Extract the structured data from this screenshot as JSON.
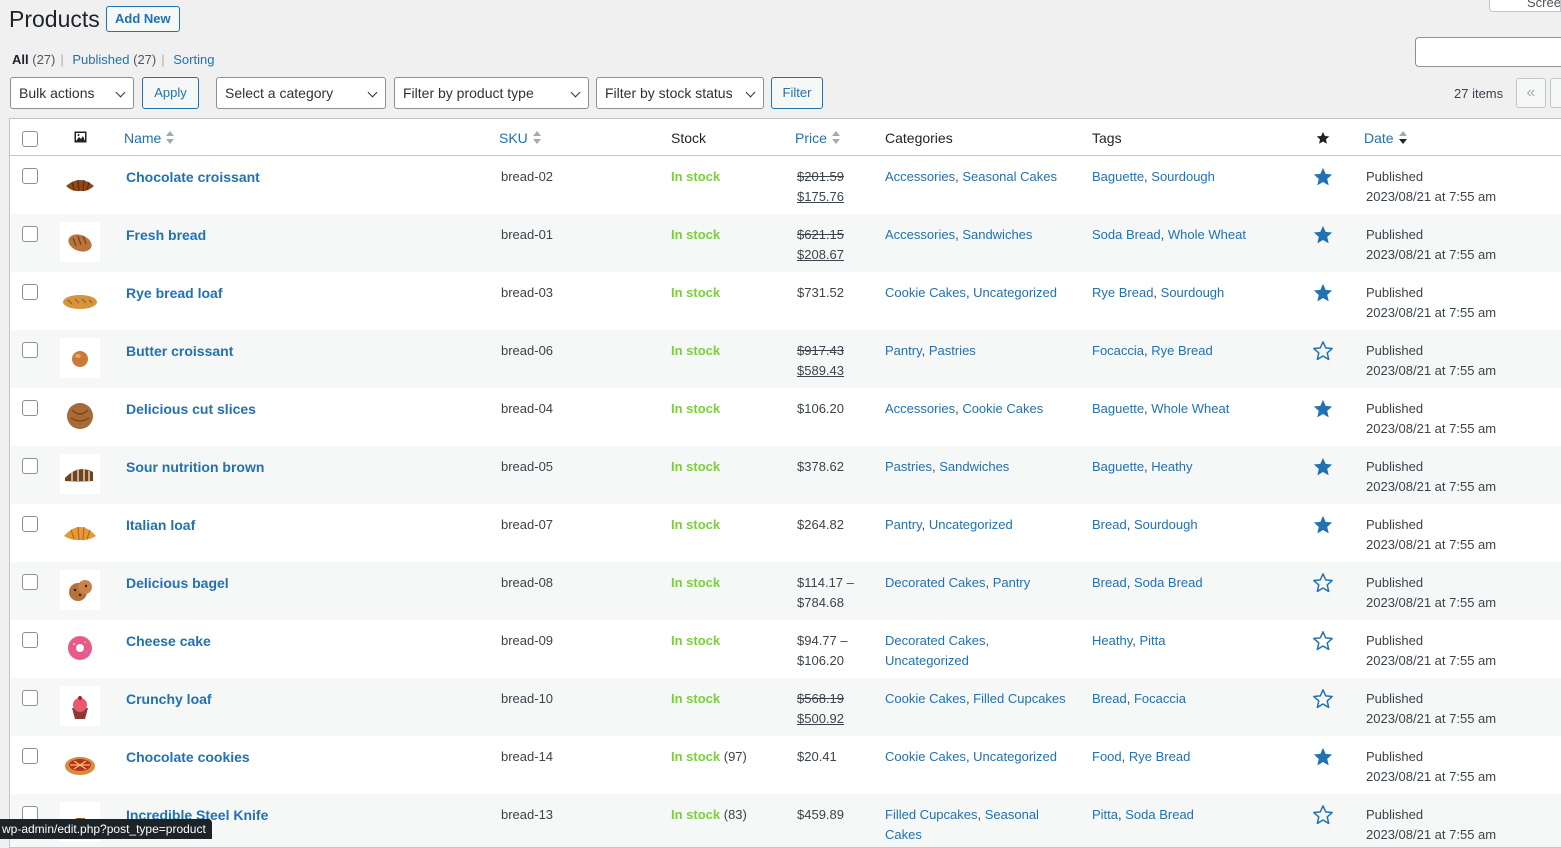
{
  "header": {
    "title": "Products",
    "add_new": "Add New",
    "screen_options": "Screen Options"
  },
  "views": {
    "all_label": "All",
    "all_count": "(27)",
    "published_label": "Published",
    "published_count": "(27)",
    "sorting_label": "Sorting"
  },
  "filters": {
    "bulk_actions": "Bulk actions",
    "apply": "Apply",
    "category": "Select a category",
    "product_type": "Filter by product type",
    "stock_status": "Filter by stock status",
    "filter": "Filter",
    "items_count": "27 items",
    "first_page": "«"
  },
  "columns": {
    "name": "Name",
    "sku": "SKU",
    "stock": "Stock",
    "price": "Price",
    "categories": "Categories",
    "tags": "Tags",
    "date": "Date"
  },
  "products": [
    {
      "name": "Chocolate croissant",
      "sku": "bread-02",
      "stock": "In stock",
      "qty": "",
      "price_old": "$201.59",
      "price_new": "$175.76",
      "price_plain": "",
      "cats": [
        "Accessories",
        "Seasonal Cakes"
      ],
      "tags": [
        "Baguette",
        "Sourdough"
      ],
      "featured": true,
      "status": "Published",
      "date": "2023/08/21 at 7:55 am",
      "thumb": "croissant"
    },
    {
      "name": "Fresh bread",
      "sku": "bread-01",
      "stock": "In stock",
      "qty": "",
      "price_old": "$621.15",
      "price_new": "$208.67",
      "price_plain": "",
      "cats": [
        "Accessories",
        "Sandwiches"
      ],
      "tags": [
        "Soda Bread",
        "Whole Wheat"
      ],
      "featured": true,
      "status": "Published",
      "date": "2023/08/21 at 7:55 am",
      "thumb": "loaf"
    },
    {
      "name": "Rye bread loaf",
      "sku": "bread-03",
      "stock": "In stock",
      "qty": "",
      "price_old": "",
      "price_new": "",
      "price_plain": "$731.52",
      "cats": [
        "Cookie Cakes",
        "Uncategorized"
      ],
      "tags": [
        "Rye Bread",
        "Sourdough"
      ],
      "featured": true,
      "status": "Published",
      "date": "2023/08/21 at 7:55 am",
      "thumb": "baguette"
    },
    {
      "name": "Butter croissant",
      "sku": "bread-06",
      "stock": "In stock",
      "qty": "",
      "price_old": "$917.43",
      "price_new": "$589.43",
      "price_plain": "",
      "cats": [
        "Pantry",
        "Pastries"
      ],
      "tags": [
        "Focaccia",
        "Rye Bread"
      ],
      "featured": false,
      "status": "Published",
      "date": "2023/08/21 at 7:55 am",
      "thumb": "bun"
    },
    {
      "name": "Delicious cut slices",
      "sku": "bread-04",
      "stock": "In stock",
      "qty": "",
      "price_old": "",
      "price_new": "",
      "price_plain": "$106.20",
      "cats": [
        "Accessories",
        "Cookie Cakes"
      ],
      "tags": [
        "Baguette",
        "Whole Wheat"
      ],
      "featured": true,
      "status": "Published",
      "date": "2023/08/21 at 7:55 am",
      "thumb": "round"
    },
    {
      "name": "Sour nutrition brown",
      "sku": "bread-05",
      "stock": "In stock",
      "qty": "",
      "price_old": "",
      "price_new": "",
      "price_plain": "$378.62",
      "cats": [
        "Pastries",
        "Sandwiches"
      ],
      "tags": [
        "Baguette",
        "Heathy"
      ],
      "featured": true,
      "status": "Published",
      "date": "2023/08/21 at 7:55 am",
      "thumb": "sliced"
    },
    {
      "name": "Italian loaf",
      "sku": "bread-07",
      "stock": "In stock",
      "qty": "",
      "price_old": "",
      "price_new": "",
      "price_plain": "$264.82",
      "cats": [
        "Pantry",
        "Uncategorized"
      ],
      "tags": [
        "Bread",
        "Sourdough"
      ],
      "featured": true,
      "status": "Published",
      "date": "2023/08/21 at 7:55 am",
      "thumb": "croissant2"
    },
    {
      "name": "Delicious bagel",
      "sku": "bread-08",
      "stock": "In stock",
      "qty": "",
      "price_old": "",
      "price_new": "",
      "price_plain": "$114.17 –",
      "price_plain2": "$784.68",
      "cats": [
        "Decorated Cakes",
        "Pantry"
      ],
      "tags": [
        "Bread",
        "Soda Bread"
      ],
      "featured": false,
      "status": "Published",
      "date": "2023/08/21 at 7:55 am",
      "thumb": "cookie"
    },
    {
      "name": "Cheese cake",
      "sku": "bread-09",
      "stock": "In stock",
      "qty": "",
      "price_old": "",
      "price_new": "",
      "price_plain": "$94.77 –",
      "price_plain2": "$106.20",
      "cats": [
        "Decorated Cakes,",
        "Uncategorized"
      ],
      "cats_wrap": true,
      "tags": [
        "Heathy",
        "Pitta"
      ],
      "featured": false,
      "status": "Published",
      "date": "2023/08/21 at 7:55 am",
      "thumb": "donut"
    },
    {
      "name": "Crunchy loaf",
      "sku": "bread-10",
      "stock": "In stock",
      "qty": "",
      "price_old": "$568.19",
      "price_new": "$500.92",
      "price_plain": "",
      "cats": [
        "Cookie Cakes",
        "Filled Cupcakes"
      ],
      "tags": [
        "Bread",
        "Focaccia"
      ],
      "featured": false,
      "status": "Published",
      "date": "2023/08/21 at 7:55 am",
      "thumb": "cupcake"
    },
    {
      "name": "Chocolate cookies",
      "sku": "bread-14",
      "stock": "In stock",
      "qty": "(97)",
      "price_old": "",
      "price_new": "",
      "price_plain": "$20.41",
      "cats": [
        "Cookie Cakes",
        "Uncategorized"
      ],
      "tags": [
        "Food",
        "Rye Bread"
      ],
      "featured": true,
      "status": "Published",
      "date": "2023/08/21 at 7:55 am",
      "thumb": "pie"
    },
    {
      "name": "Incredible Steel Knife",
      "sku": "bread-13",
      "stock": "In stock",
      "qty": "(83)",
      "price_old": "",
      "price_new": "",
      "price_plain": "$459.89",
      "cats": [
        "Filled Cupcakes",
        "Seasonal"
      ],
      "cats_line2": "Cakes",
      "tags": [
        "Pitta",
        "Soda Bread"
      ],
      "featured": false,
      "status": "Published",
      "date": "2023/08/21 at 7:55 am",
      "thumb": "croissant"
    }
  ],
  "status_bar": "wp-admin/edit.php?post_type=product",
  "colors": {
    "link": "#2271b1",
    "in_stock": "#7ad03a",
    "star": "#2271b1"
  }
}
